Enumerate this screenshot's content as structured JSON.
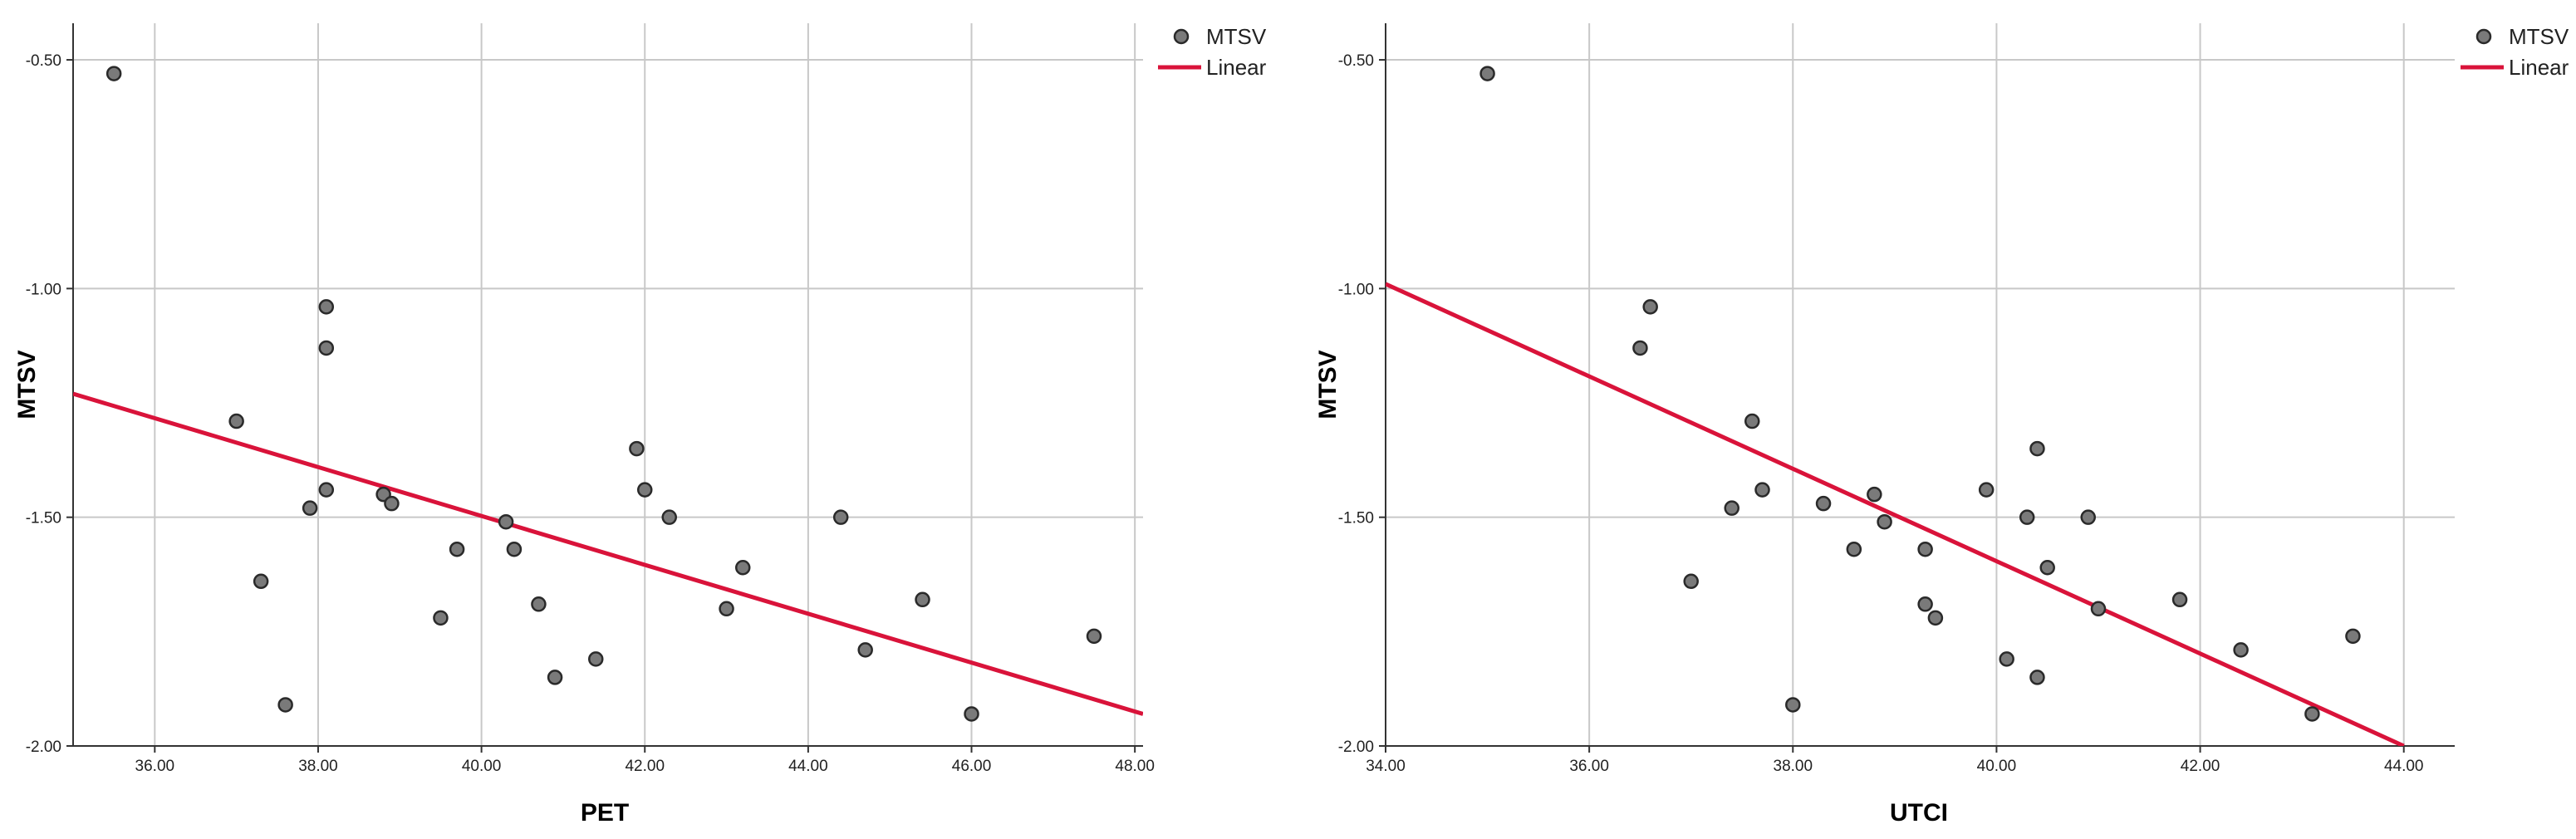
{
  "chart_data": [
    {
      "type": "scatter",
      "xlabel": "PET",
      "ylabel": "MTSV",
      "xlim": [
        35.0,
        48.1
      ],
      "ylim": [
        -2.0,
        -0.42
      ],
      "xticks": [
        36,
        38,
        40,
        42,
        44,
        46,
        48
      ],
      "xtick_labels": [
        "36.00",
        "38.00",
        "40.00",
        "42.00",
        "44.00",
        "46.00",
        "48.00"
      ],
      "yticks": [
        -0.5,
        -1.0,
        -1.5,
        -2.0
      ],
      "ytick_labels": [
        "-0.50",
        "-1.00",
        "-1.50",
        "-2.00"
      ],
      "grid": true,
      "legend": {
        "position": "top-right",
        "entries": [
          "MTSV",
          "Linear"
        ]
      },
      "series": [
        {
          "name": "MTSV",
          "points": [
            {
              "x": 35.5,
              "y": -0.53
            },
            {
              "x": 37.0,
              "y": -1.29
            },
            {
              "x": 37.3,
              "y": -1.64
            },
            {
              "x": 37.6,
              "y": -1.91
            },
            {
              "x": 37.9,
              "y": -1.48
            },
            {
              "x": 38.1,
              "y": -1.04
            },
            {
              "x": 38.1,
              "y": -1.13
            },
            {
              "x": 38.1,
              "y": -1.44
            },
            {
              "x": 38.8,
              "y": -1.45
            },
            {
              "x": 38.9,
              "y": -1.47
            },
            {
              "x": 39.5,
              "y": -1.72
            },
            {
              "x": 39.7,
              "y": -1.57
            },
            {
              "x": 40.3,
              "y": -1.51
            },
            {
              "x": 40.4,
              "y": -1.57
            },
            {
              "x": 40.7,
              "y": -1.69
            },
            {
              "x": 40.9,
              "y": -1.85
            },
            {
              "x": 41.4,
              "y": -1.81
            },
            {
              "x": 41.9,
              "y": -1.35
            },
            {
              "x": 42.0,
              "y": -1.44
            },
            {
              "x": 42.3,
              "y": -1.5
            },
            {
              "x": 43.0,
              "y": -1.7
            },
            {
              "x": 43.2,
              "y": -1.61
            },
            {
              "x": 44.4,
              "y": -1.5
            },
            {
              "x": 44.7,
              "y": -1.79
            },
            {
              "x": 45.4,
              "y": -1.68
            },
            {
              "x": 46.0,
              "y": -1.93
            },
            {
              "x": 47.5,
              "y": -1.76
            }
          ]
        },
        {
          "name": "Linear",
          "line": [
            {
              "x": 35.0,
              "y": -1.23
            },
            {
              "x": 48.1,
              "y": -1.93
            }
          ]
        }
      ]
    },
    {
      "type": "scatter",
      "xlabel": "UTCI",
      "ylabel": "MTSV",
      "xlim": [
        34.0,
        44.5
      ],
      "ylim": [
        -2.0,
        -0.42
      ],
      "xticks": [
        34,
        36,
        38,
        40,
        42,
        44
      ],
      "xtick_labels": [
        "34.00",
        "36.00",
        "38.00",
        "40.00",
        "42.00",
        "44.00"
      ],
      "yticks": [
        -0.5,
        -1.0,
        -1.5,
        -2.0
      ],
      "ytick_labels": [
        "-0.50",
        "-1.00",
        "-1.50",
        "-2.00"
      ],
      "grid": true,
      "legend": {
        "position": "top-right",
        "entries": [
          "MTSV",
          "Linear"
        ]
      },
      "series": [
        {
          "name": "MTSV",
          "points": [
            {
              "x": 35.0,
              "y": -0.53
            },
            {
              "x": 36.5,
              "y": -1.13
            },
            {
              "x": 36.6,
              "y": -1.04
            },
            {
              "x": 37.0,
              "y": -1.64
            },
            {
              "x": 37.4,
              "y": -1.48
            },
            {
              "x": 37.6,
              "y": -1.29
            },
            {
              "x": 37.7,
              "y": -1.44
            },
            {
              "x": 38.0,
              "y": -1.91
            },
            {
              "x": 38.3,
              "y": -1.47
            },
            {
              "x": 38.6,
              "y": -1.57
            },
            {
              "x": 38.8,
              "y": -1.45
            },
            {
              "x": 38.9,
              "y": -1.51
            },
            {
              "x": 39.3,
              "y": -1.57
            },
            {
              "x": 39.3,
              "y": -1.69
            },
            {
              "x": 39.4,
              "y": -1.72
            },
            {
              "x": 39.9,
              "y": -1.44
            },
            {
              "x": 40.1,
              "y": -1.81
            },
            {
              "x": 40.3,
              "y": -1.5
            },
            {
              "x": 40.4,
              "y": -1.35
            },
            {
              "x": 40.4,
              "y": -1.85
            },
            {
              "x": 40.5,
              "y": -1.61
            },
            {
              "x": 40.9,
              "y": -1.5
            },
            {
              "x": 41.0,
              "y": -1.7
            },
            {
              "x": 41.8,
              "y": -1.68
            },
            {
              "x": 42.4,
              "y": -1.79
            },
            {
              "x": 43.1,
              "y": -1.93
            },
            {
              "x": 43.5,
              "y": -1.76
            }
          ]
        },
        {
          "name": "Linear",
          "line": [
            {
              "x": 34.0,
              "y": -0.99
            },
            {
              "x": 44.0,
              "y": -2.0
            }
          ]
        }
      ]
    }
  ],
  "colors": {
    "point_fill": "#7a7a7a",
    "point_stroke": "#2a2a2a",
    "fit_line": "#d9133a",
    "grid": "#c8c8c8",
    "axis": "#333333"
  }
}
